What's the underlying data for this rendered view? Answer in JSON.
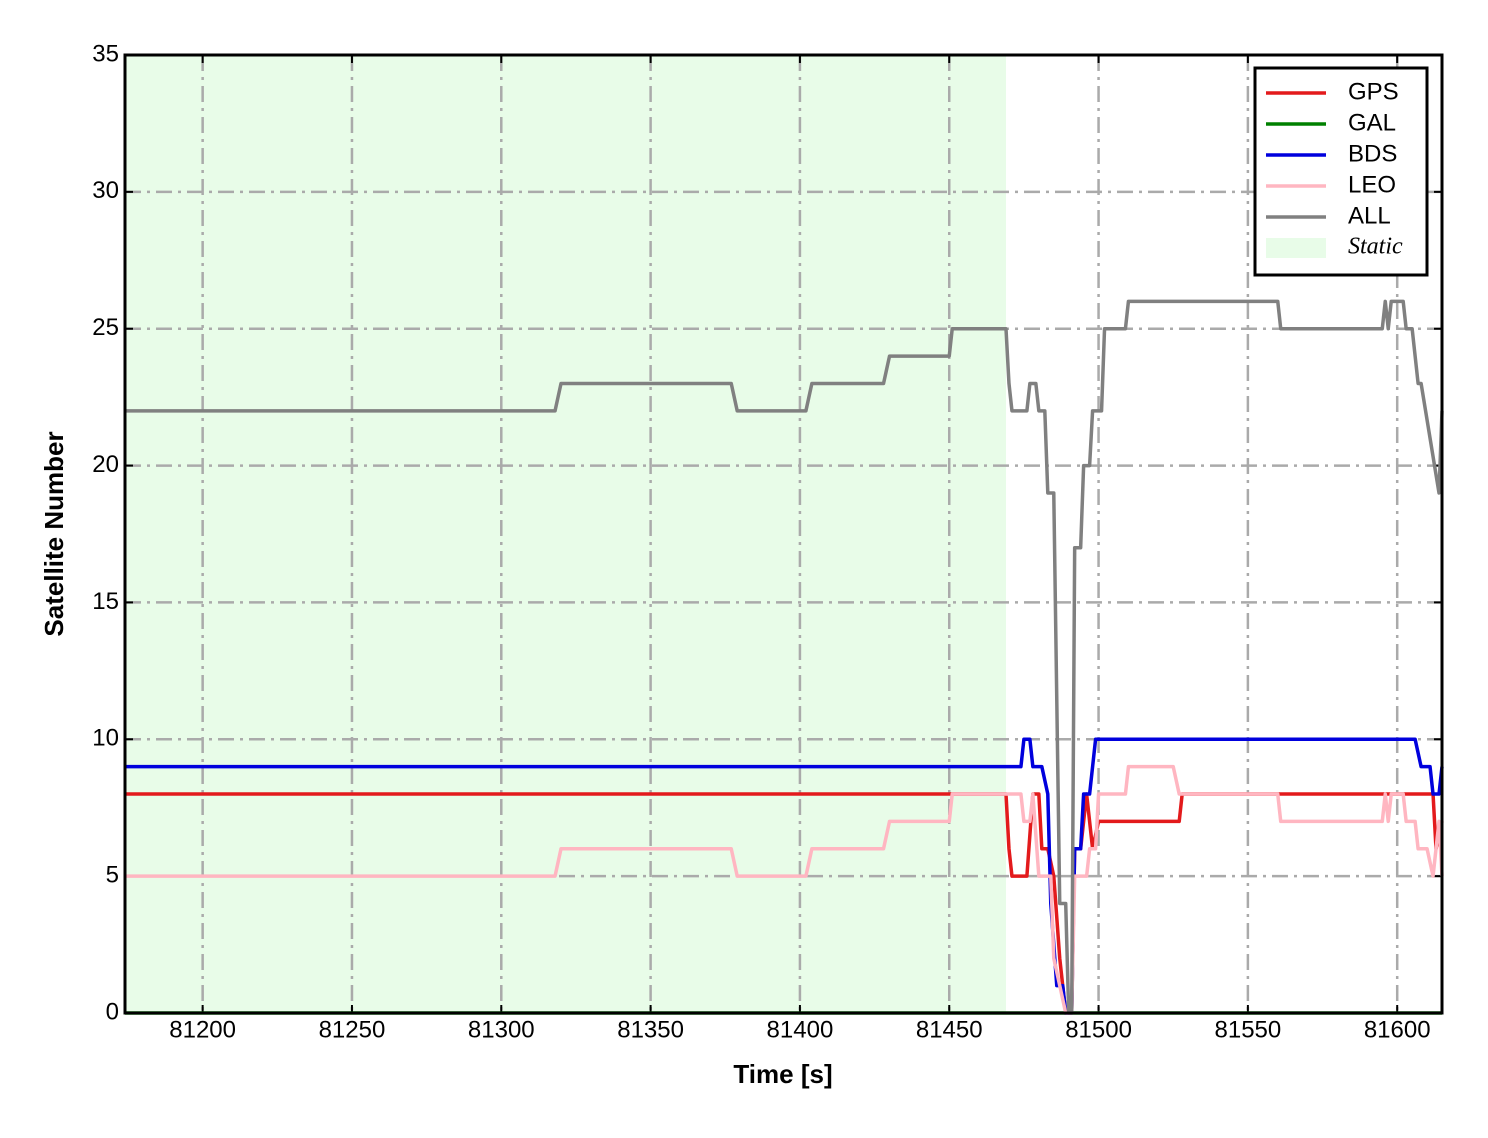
{
  "chart_data": {
    "type": "line",
    "xlabel": "Time [s]",
    "ylabel": "Satellite Number",
    "xlim": [
      81174,
      81615
    ],
    "ylim": [
      0,
      35
    ],
    "xticks": [
      81200,
      81250,
      81300,
      81350,
      81400,
      81450,
      81500,
      81550,
      81600
    ],
    "yticks": [
      0,
      5,
      10,
      15,
      20,
      25,
      30,
      35
    ],
    "grid": true,
    "legend": "upper right",
    "shaded_region": {
      "label": "Static",
      "x": [
        81174,
        81469
      ],
      "color": "#e8fce8"
    },
    "series": [
      {
        "name": "GPS",
        "color": "#e31a1c",
        "x": [
          81174,
          81469,
          81470,
          81471,
          81476,
          81478,
          81480,
          81481,
          81483,
          81485,
          81487,
          81489,
          81491,
          81492,
          81494,
          81496,
          81498,
          81500,
          81527,
          81528,
          81612,
          81613,
          81615
        ],
        "values": [
          8,
          8,
          6,
          5,
          5,
          8,
          8,
          6,
          6,
          5,
          2,
          0,
          0,
          6,
          6,
          8,
          6,
          7,
          7,
          8,
          8,
          6,
          7
        ]
      },
      {
        "name": "GAL",
        "color": "#008000",
        "x": [
          81174,
          81615
        ],
        "values": [
          0,
          0
        ]
      },
      {
        "name": "BDS",
        "color": "#0000dd",
        "x": [
          81174,
          81474,
          81475,
          81477,
          81478,
          81481,
          81483,
          81484,
          81486,
          81488,
          81489,
          81491,
          81492,
          81494,
          81495,
          81497,
          81499,
          81606,
          81608,
          81611,
          81612,
          81614,
          81615
        ],
        "values": [
          9,
          9,
          10,
          10,
          9,
          9,
          8,
          4,
          1,
          1,
          0,
          0,
          6,
          6,
          8,
          8,
          10,
          10,
          9,
          9,
          8,
          8,
          9
        ]
      },
      {
        "name": "LEO",
        "color": "#ffb6c1",
        "x": [
          81174,
          81318,
          81320,
          81377,
          81379,
          81402,
          81404,
          81428,
          81430,
          81450,
          81451,
          81474,
          81475,
          81477,
          81478,
          81480,
          81484,
          81485,
          81489,
          81491,
          81492,
          81496,
          81497,
          81499,
          81500,
          81509,
          81510,
          81525,
          81527,
          81560,
          81561,
          81595,
          81596,
          81597,
          81598,
          81602,
          81603,
          81606,
          81607,
          81610,
          81612,
          81614,
          81615
        ],
        "values": [
          5,
          5,
          6,
          6,
          5,
          5,
          6,
          6,
          7,
          7,
          8,
          8,
          7,
          7,
          8,
          5,
          5,
          2,
          0,
          0,
          5,
          5,
          6,
          6,
          8,
          8,
          9,
          9,
          8,
          8,
          7,
          7,
          8,
          7,
          8,
          8,
          7,
          7,
          6,
          6,
          5,
          7,
          5
        ]
      },
      {
        "name": "ALL",
        "color": "#808080",
        "x": [
          81174,
          81318,
          81320,
          81377,
          81379,
          81402,
          81404,
          81428,
          81430,
          81450,
          81451,
          81469,
          81470,
          81471,
          81476,
          81477,
          81479,
          81480,
          81482,
          81483,
          81485,
          81487,
          81489,
          81490,
          81491,
          81492,
          81494,
          81495,
          81497,
          81498,
          81501,
          81502,
          81509,
          81510,
          81560,
          81561,
          81595,
          81596,
          81597,
          81598,
          81602,
          81603,
          81605,
          81607,
          81608,
          81614,
          81615
        ],
        "values": [
          22,
          22,
          23,
          23,
          22,
          22,
          23,
          23,
          24,
          24,
          25,
          25,
          23,
          22,
          22,
          23,
          23,
          22,
          22,
          19,
          19,
          4,
          4,
          0,
          0,
          17,
          17,
          20,
          20,
          22,
          22,
          25,
          25,
          26,
          26,
          25,
          25,
          26,
          25,
          26,
          26,
          25,
          25,
          23,
          23,
          19,
          22
        ]
      }
    ]
  }
}
